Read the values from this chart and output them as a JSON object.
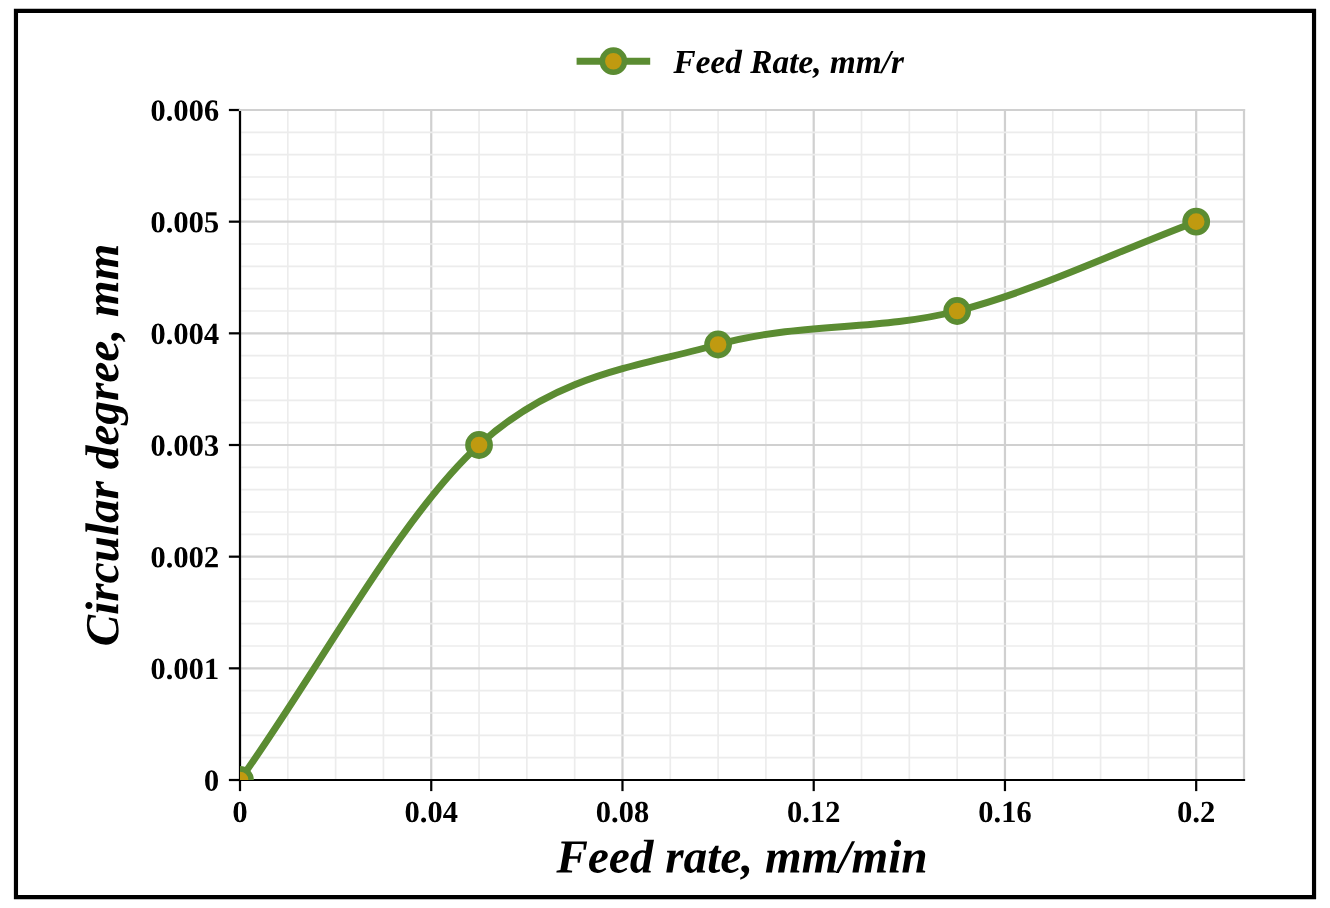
{
  "chart_data": {
    "type": "line",
    "xlabel": "Feed rate, mm/min",
    "ylabel": "Circular degree, mm",
    "x": [
      0,
      0.05,
      0.1,
      0.15,
      0.2
    ],
    "series": [
      {
        "name": "Feed Rate, mm/r",
        "color": "#5b8c32",
        "values": [
          0,
          0.003,
          0.0039,
          0.0042,
          0.005
        ]
      }
    ],
    "xlim": [
      0,
      0.21
    ],
    "xticks": [
      0,
      0.04,
      0.08,
      0.12,
      0.16,
      0.2
    ],
    "ylim": [
      0,
      0.006
    ],
    "yticks": [
      0,
      0.001,
      0.002,
      0.003,
      0.004,
      0.005,
      0.006
    ],
    "grid": true,
    "legend": "top",
    "marker": "circle",
    "line_style": "solid"
  }
}
